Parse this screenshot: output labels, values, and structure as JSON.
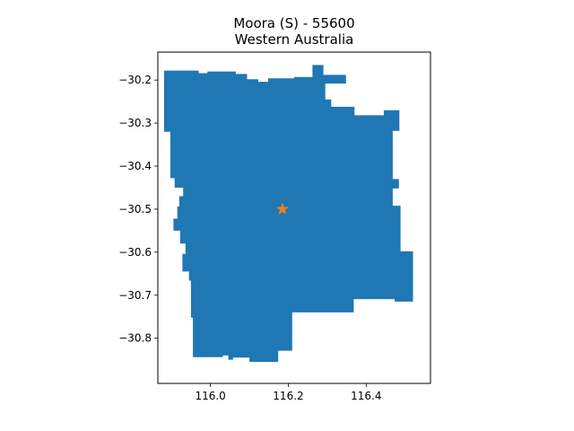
{
  "title": {
    "line1": "Moora (S) - 55600",
    "line2": "Western Australia"
  },
  "map": {
    "region_color": "#1f77b4",
    "marker_color": "#ff7f0e",
    "marker_symbol": "star",
    "marker": {
      "lon": 116.185,
      "lat": -30.5
    },
    "xlim": [
      115.865,
      116.565
    ],
    "ylim": [
      -30.905,
      -30.135
    ],
    "x_ticks": [
      {
        "value": 116.0,
        "label": "116.0"
      },
      {
        "value": 116.2,
        "label": "116.2"
      },
      {
        "value": 116.4,
        "label": "116.4"
      }
    ],
    "y_ticks": [
      {
        "value": -30.2,
        "label": "−30.2"
      },
      {
        "value": -30.3,
        "label": "−30.3"
      },
      {
        "value": -30.4,
        "label": "−30.4"
      },
      {
        "value": -30.5,
        "label": "−30.5"
      },
      {
        "value": -30.6,
        "label": "−30.6"
      },
      {
        "value": -30.7,
        "label": "−30.7"
      },
      {
        "value": -30.8,
        "label": "−30.8"
      }
    ],
    "boundary": [
      [
        115.881,
        -30.178
      ],
      [
        115.97,
        -30.178
      ],
      [
        115.97,
        -30.184
      ],
      [
        115.992,
        -30.184
      ],
      [
        115.992,
        -30.18
      ],
      [
        116.065,
        -30.18
      ],
      [
        116.065,
        -30.186
      ],
      [
        116.094,
        -30.186
      ],
      [
        116.094,
        -30.198
      ],
      [
        116.123,
        -30.198
      ],
      [
        116.123,
        -30.204
      ],
      [
        116.148,
        -30.204
      ],
      [
        116.148,
        -30.196
      ],
      [
        116.215,
        -30.196
      ],
      [
        116.215,
        -30.193
      ],
      [
        116.262,
        -30.193
      ],
      [
        116.262,
        -30.165
      ],
      [
        116.29,
        -30.165
      ],
      [
        116.29,
        -30.188
      ],
      [
        116.348,
        -30.188
      ],
      [
        116.348,
        -30.208
      ],
      [
        116.295,
        -30.208
      ],
      [
        116.295,
        -30.245
      ],
      [
        116.31,
        -30.245
      ],
      [
        116.31,
        -30.262
      ],
      [
        116.37,
        -30.262
      ],
      [
        116.37,
        -30.282
      ],
      [
        116.445,
        -30.282
      ],
      [
        116.445,
        -30.27
      ],
      [
        116.485,
        -30.27
      ],
      [
        116.485,
        -30.318
      ],
      [
        116.468,
        -30.318
      ],
      [
        116.468,
        -30.43
      ],
      [
        116.484,
        -30.43
      ],
      [
        116.484,
        -30.452
      ],
      [
        116.468,
        -30.452
      ],
      [
        116.468,
        -30.492
      ],
      [
        116.488,
        -30.492
      ],
      [
        116.488,
        -30.598
      ],
      [
        116.52,
        -30.598
      ],
      [
        116.52,
        -30.715
      ],
      [
        116.473,
        -30.715
      ],
      [
        116.473,
        -30.709
      ],
      [
        116.368,
        -30.709
      ],
      [
        116.368,
        -30.74
      ],
      [
        116.21,
        -30.74
      ],
      [
        116.21,
        -30.829
      ],
      [
        116.174,
        -30.829
      ],
      [
        116.174,
        -30.855
      ],
      [
        116.1,
        -30.855
      ],
      [
        116.1,
        -30.845
      ],
      [
        116.058,
        -30.845
      ],
      [
        116.058,
        -30.85
      ],
      [
        116.046,
        -30.85
      ],
      [
        116.046,
        -30.84
      ],
      [
        116.032,
        -30.84
      ],
      [
        116.032,
        -30.844
      ],
      [
        115.955,
        -30.844
      ],
      [
        115.955,
        -30.752
      ],
      [
        115.95,
        -30.752
      ],
      [
        115.95,
        -30.666
      ],
      [
        115.945,
        -30.666
      ],
      [
        115.945,
        -30.645
      ],
      [
        115.928,
        -30.645
      ],
      [
        115.928,
        -30.604
      ],
      [
        115.936,
        -30.604
      ],
      [
        115.936,
        -30.58
      ],
      [
        115.922,
        -30.58
      ],
      [
        115.922,
        -30.55
      ],
      [
        115.905,
        -30.55
      ],
      [
        115.905,
        -30.522
      ],
      [
        115.915,
        -30.522
      ],
      [
        115.915,
        -30.494
      ],
      [
        115.92,
        -30.494
      ],
      [
        115.92,
        -30.47
      ],
      [
        115.93,
        -30.47
      ],
      [
        115.93,
        -30.45
      ],
      [
        115.908,
        -30.45
      ],
      [
        115.908,
        -30.428
      ],
      [
        115.897,
        -30.428
      ],
      [
        115.897,
        -30.32
      ],
      [
        115.881,
        -30.32
      ]
    ]
  }
}
